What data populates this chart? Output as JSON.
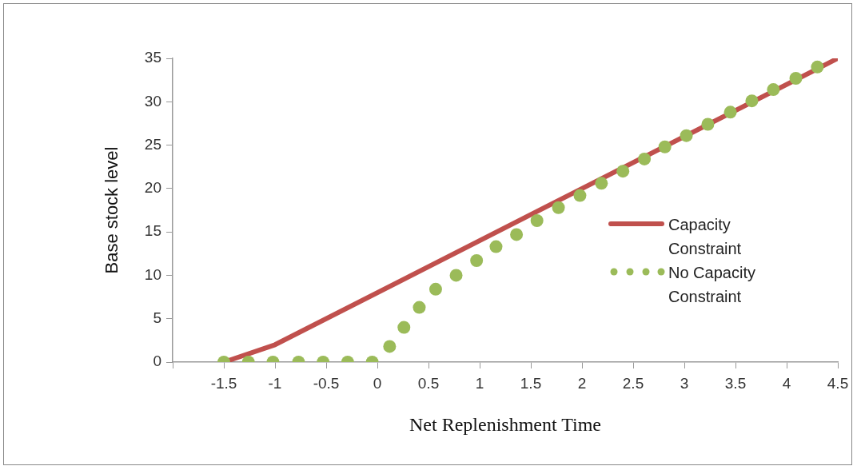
{
  "chart_data": {
    "type": "line",
    "xlabel": "Net Replenishment Time",
    "ylabel": "Base stock level",
    "xlim": [
      -2,
      4.5
    ],
    "xticks": [
      {
        "value": -2,
        "label": null
      },
      -1.5,
      -1,
      -0.5,
      0,
      0.5,
      1,
      1.5,
      2,
      2.5,
      3,
      3.5,
      4,
      4.5
    ],
    "ylim": [
      0,
      35
    ],
    "yticks": [
      0,
      5,
      10,
      15,
      20,
      25,
      30,
      35
    ],
    "grid": false,
    "legend": "right",
    "series": [
      {
        "name": "Capacity Constraint",
        "type": "line",
        "color": "#c0504d",
        "marker": "none",
        "line_style": "solid",
        "x": [
          -1.5,
          -1,
          4.5
        ],
        "values": [
          0,
          2,
          35
        ]
      },
      {
        "name": "No Capacity Constraint",
        "type": "scatter",
        "color": "#9bbb59",
        "marker": "circle",
        "x": [
          -1.5,
          -1.26,
          -1.02,
          -0.77,
          -0.53,
          -0.29,
          -0.05,
          0.12,
          0.26,
          0.41,
          0.57,
          0.77,
          0.97,
          1.16,
          1.36,
          1.56,
          1.77,
          1.98,
          2.19,
          2.4,
          2.61,
          2.81,
          3.02,
          3.23,
          3.45,
          3.66,
          3.87,
          4.09,
          4.3
        ],
        "values": [
          0,
          0,
          0,
          0,
          0,
          0,
          0,
          1.8,
          4,
          6.3,
          8.4,
          10,
          11.7,
          13.3,
          14.7,
          16.3,
          17.8,
          19.2,
          20.6,
          22,
          23.4,
          24.8,
          26.1,
          27.4,
          28.8,
          30.1,
          31.4,
          32.7,
          34
        ]
      }
    ]
  }
}
